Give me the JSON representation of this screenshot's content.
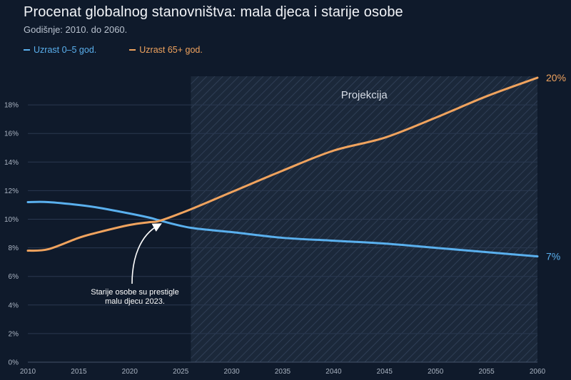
{
  "title": "Procenat globalnog stanovništva: mala djeca i starije osobe",
  "subtitle": "Godišnje: 2010. do 2060.",
  "colors": {
    "background": "#0f1a2b",
    "series_0": "#5ab0ee",
    "series_1": "#f0a35e",
    "projection_fill": "#1e2b3e"
  },
  "chart_data": {
    "type": "line",
    "x": [
      2010,
      2012,
      2015,
      2017,
      2020,
      2022,
      2023,
      2026,
      2030,
      2035,
      2040,
      2045,
      2050,
      2055,
      2060
    ],
    "series": [
      {
        "name": "Uzrast 0–5 god.",
        "color": "#5ab0ee",
        "values": [
          11.2,
          11.2,
          11.0,
          10.8,
          10.4,
          10.1,
          9.9,
          9.4,
          9.1,
          8.7,
          8.5,
          8.3,
          8.0,
          7.7,
          7.4
        ]
      },
      {
        "name": "Uzrast 65+ god.",
        "color": "#f0a35e",
        "values": [
          7.8,
          7.9,
          8.7,
          9.1,
          9.6,
          9.8,
          9.9,
          10.7,
          11.9,
          13.4,
          14.8,
          15.7,
          17.1,
          18.6,
          19.9
        ]
      }
    ],
    "xlim": [
      2010,
      2060
    ],
    "ylim": [
      0,
      20
    ],
    "x_ticks": [
      2010,
      2015,
      2020,
      2025,
      2030,
      2035,
      2040,
      2045,
      2050,
      2055,
      2060
    ],
    "y_ticks": [
      0,
      2,
      4,
      6,
      8,
      10,
      12,
      14,
      16,
      18
    ],
    "y_tick_labels": [
      "0%",
      "2%",
      "4%",
      "6%",
      "8%",
      "10%",
      "12%",
      "14%",
      "16%",
      "18%"
    ],
    "grid": "horizontal",
    "legend_position": "top-left",
    "projection": {
      "from": 2026,
      "to": 2060,
      "label": "Projekcija"
    },
    "end_labels": [
      "7%",
      "20%"
    ],
    "annotation": {
      "x": 2023,
      "y": 9.9,
      "lines": [
        "Starije osobe su prestigle",
        "malu djecu 2023."
      ]
    }
  }
}
